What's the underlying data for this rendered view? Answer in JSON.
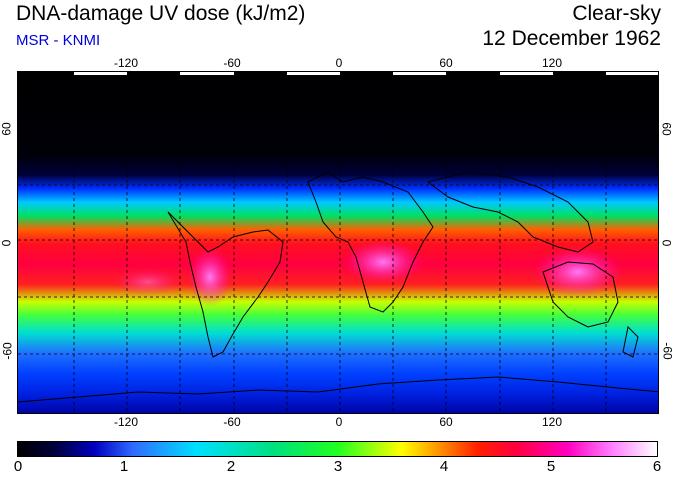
{
  "header": {
    "title": "DNA-damage UV dose (kJ/m2)",
    "credit": "MSR - KNMI",
    "sky": "Clear-sky",
    "date": "12 December 1962"
  },
  "map": {
    "lon_labels": [
      "-120",
      "-60",
      "0",
      "60",
      "120"
    ],
    "lat_labels_left": [
      "60",
      "0",
      "-60"
    ],
    "lat_labels_right": [
      "60",
      "0",
      "-60"
    ]
  },
  "colorbar": {
    "ticks": [
      "0",
      "1",
      "2",
      "3",
      "4",
      "5",
      "6"
    ]
  },
  "colors": {
    "credit": "#0000dd",
    "grid": "#000000"
  }
}
